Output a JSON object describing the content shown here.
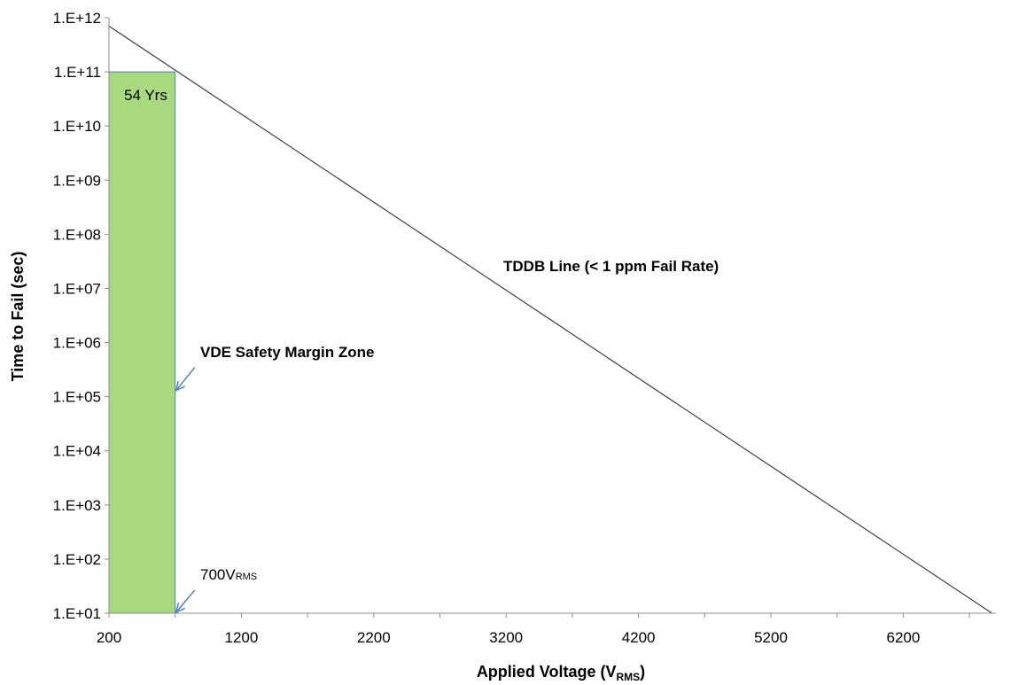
{
  "chart_data": {
    "type": "line",
    "title": "",
    "xlabel": {
      "main": "Applied Voltage (V",
      "sub": "RMS",
      "close": ")"
    },
    "ylabel": "Time to Fail (sec)",
    "xlim": [
      200,
      6900
    ],
    "ylim_log10": [
      1,
      12
    ],
    "y_scale": "log",
    "x_ticks": [
      200,
      1200,
      2200,
      3200,
      4200,
      5200,
      6200
    ],
    "x_tick_labels": [
      "200",
      "1200",
      "2200",
      "3200",
      "4200",
      "5200",
      "6200"
    ],
    "y_ticks": [
      10.0,
      100.0,
      1000.0,
      10000.0,
      100000.0,
      1000000.0,
      10000000.0,
      100000000.0,
      1000000000.0,
      10000000000.0,
      100000000000.0,
      1000000000000.0
    ],
    "y_tick_labels": [
      "1.E+01",
      "1.E+02",
      "1.E+03",
      "1.E+04",
      "1.E+05",
      "1.E+06",
      "1.E+07",
      "1.E+08",
      "1.E+09",
      "1.E+10",
      "1.E+11",
      "1.E+12"
    ],
    "grid": false,
    "series": [
      {
        "name": "TDDB Line (< 1 ppm Fail Rate)",
        "color": "#404040",
        "x": [
          200,
          6870
        ],
        "y": [
          700000000000.0,
          10.0
        ]
      }
    ],
    "zone": {
      "name": "VDE Safety Margin Zone",
      "x_range": [
        200,
        700
      ],
      "y_range": [
        10.0,
        100000000000.0
      ],
      "fill": "#a9d97f",
      "edge": "#4f81bd",
      "inside_label": "54 Yrs"
    },
    "annotations": [
      {
        "text": "TDDB Line (< 1 ppm Fail Rate)",
        "bold": true
      },
      {
        "text": "VDE Safety Margin Zone",
        "bold": true,
        "arrow_to": [
          700,
          130000.0
        ]
      },
      {
        "text": "700V",
        "sub": "RMS",
        "bold": false,
        "arrow_to": [
          700,
          10.0
        ]
      }
    ],
    "arrow_color": "#4f81bd"
  }
}
